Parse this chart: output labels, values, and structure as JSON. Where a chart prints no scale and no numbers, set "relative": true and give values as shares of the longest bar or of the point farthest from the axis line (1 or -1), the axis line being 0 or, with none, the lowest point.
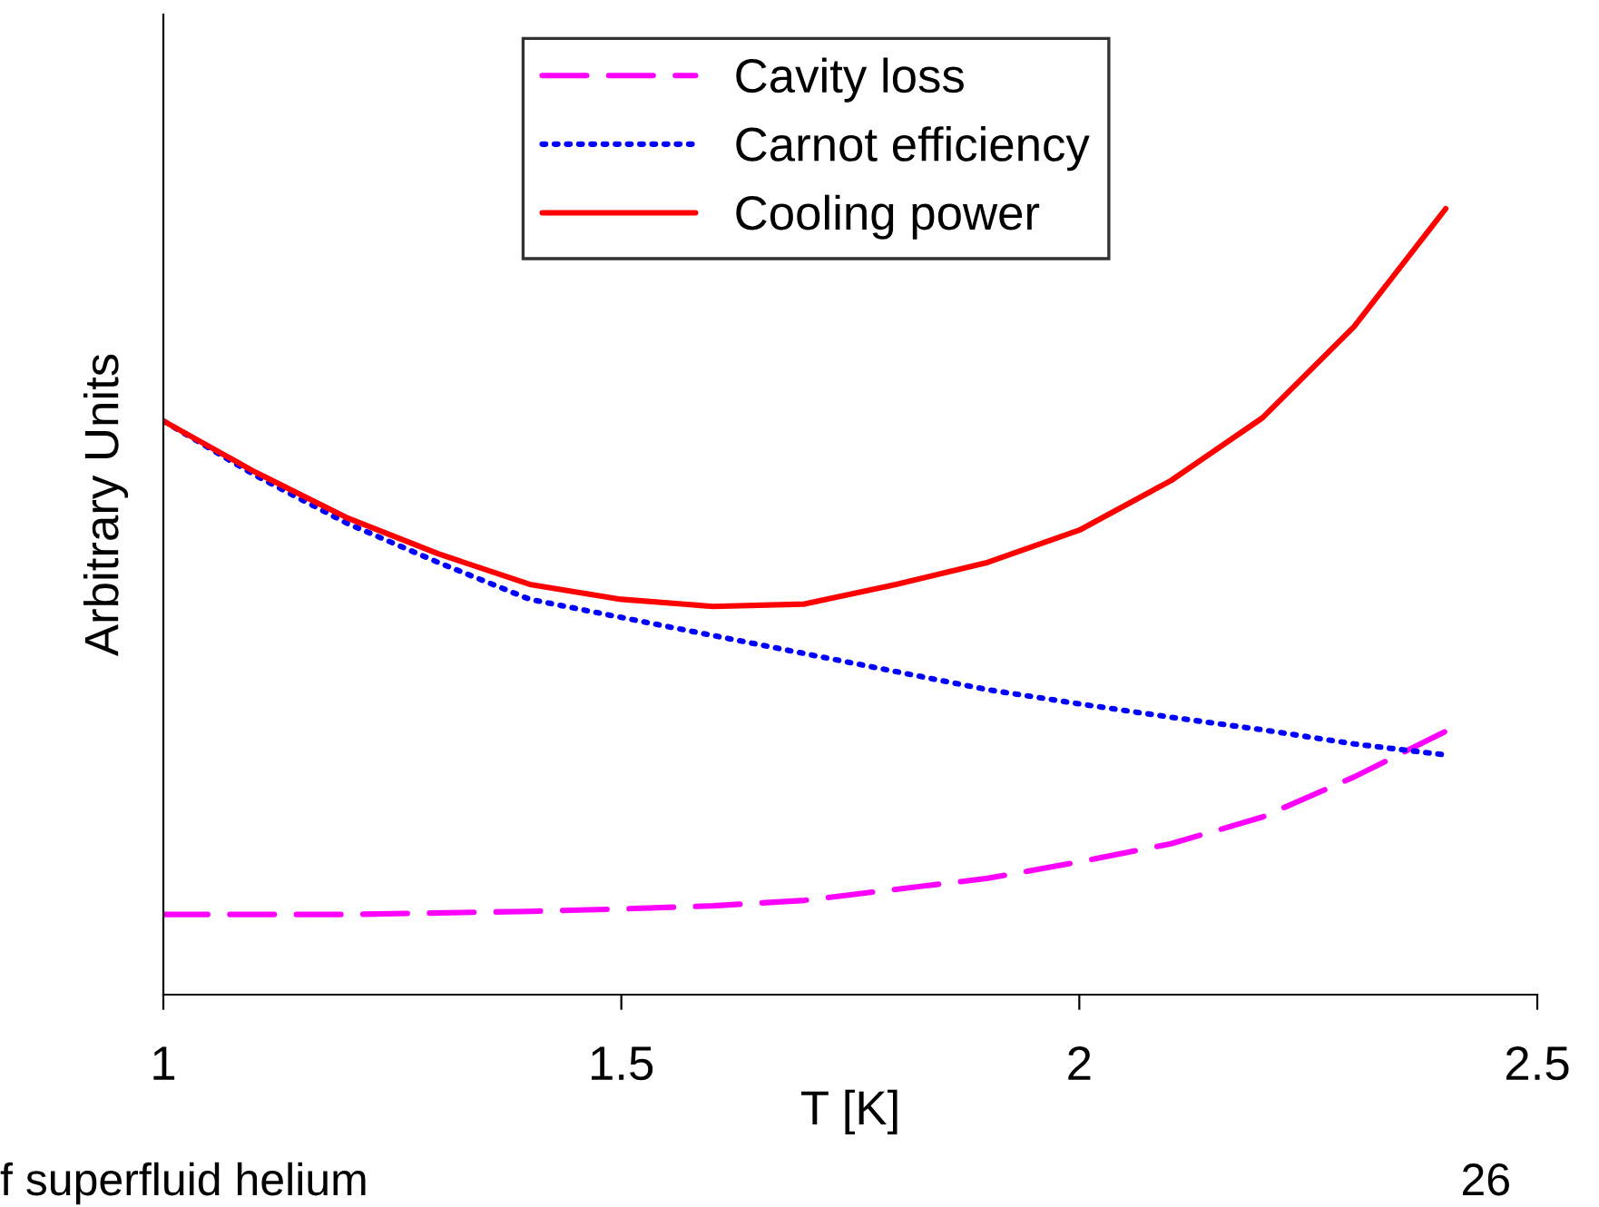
{
  "chart_data": {
    "type": "line",
    "relative": true,
    "xlabel": "T [K]",
    "ylabel": "Arbitrary Units",
    "xlim": [
      1,
      2.5
    ],
    "xticks": [
      1,
      1.5,
      2,
      2.5
    ],
    "legend": "top",
    "grid": false,
    "marker": "none",
    "annotations": [
      "f superfluid helium",
      "26"
    ],
    "series": [
      {
        "name": "Cavity loss",
        "color": "#ff00ff",
        "line_style": "dashed",
        "x": [
          1.0,
          1.2,
          1.4,
          1.5,
          1.6,
          1.7,
          1.8,
          1.9,
          2.0,
          2.1,
          2.2,
          2.3,
          2.4
        ],
        "values": [
          0.102,
          0.102,
          0.106,
          0.109,
          0.113,
          0.12,
          0.134,
          0.148,
          0.169,
          0.192,
          0.226,
          0.277,
          0.335
        ]
      },
      {
        "name": "Carnot efficiency",
        "color": "#0000ff",
        "line_style": "dotted",
        "x": [
          1.0,
          1.1,
          1.2,
          1.3,
          1.4,
          1.5,
          1.6,
          1.7,
          1.8,
          1.9,
          2.0,
          2.1,
          2.2,
          2.3,
          2.4
        ],
        "values": [
          0.73,
          0.661,
          0.6,
          0.55,
          0.503,
          0.48,
          0.457,
          0.434,
          0.411,
          0.388,
          0.37,
          0.353,
          0.337,
          0.319,
          0.305
        ]
      },
      {
        "name": "Cooling power",
        "color": "#ff0000",
        "line_style": "solid",
        "x": [
          1.0,
          1.1,
          1.2,
          1.3,
          1.4,
          1.5,
          1.6,
          1.7,
          1.8,
          1.9,
          2.0,
          2.1,
          2.2,
          2.3,
          2.4
        ],
        "values": [
          0.73,
          0.665,
          0.607,
          0.561,
          0.522,
          0.503,
          0.494,
          0.497,
          0.522,
          0.55,
          0.591,
          0.654,
          0.734,
          0.85,
          1.0
        ]
      }
    ]
  }
}
